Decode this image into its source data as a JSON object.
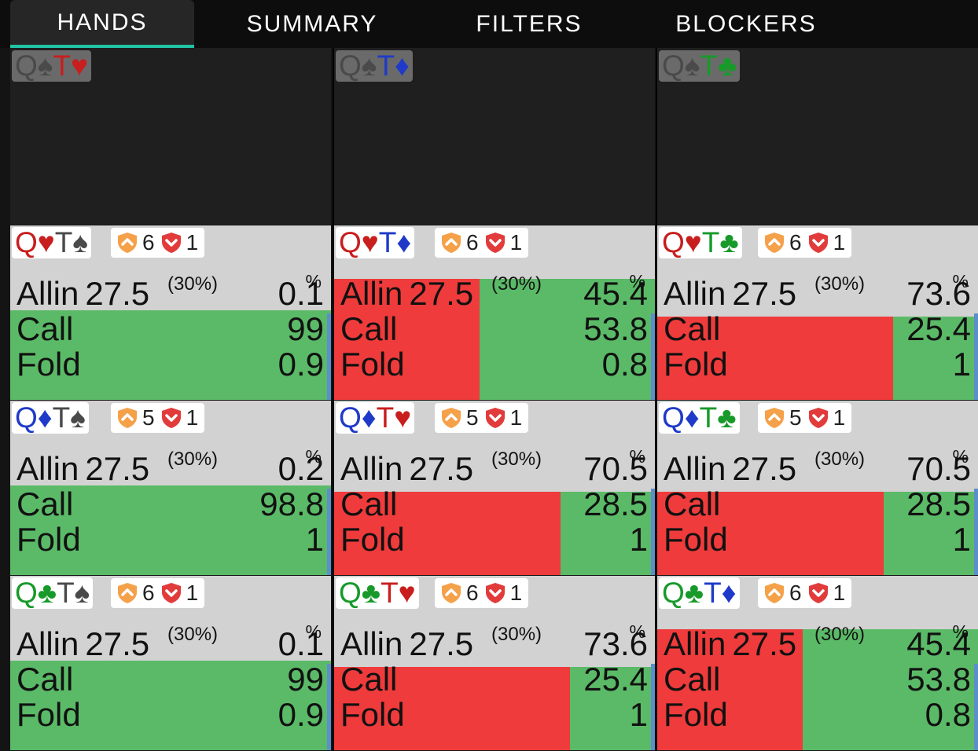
{
  "tabs": [
    {
      "label": "HANDS",
      "active": true
    },
    {
      "label": "SUMMARY",
      "active": false
    },
    {
      "label": "FILTERS",
      "active": false
    },
    {
      "label": "BLOCKERS",
      "active": false
    }
  ],
  "colors": {
    "accent": "#1fc3a5",
    "allin": "#ef3b3b",
    "call": "#5bba67",
    "panel": "#d2d2d2"
  },
  "icons": [
    "orange-shield-icon",
    "red-shield-icon",
    "spade-icon",
    "heart-icon",
    "diamond-icon",
    "club-icon"
  ],
  "top_row": [
    {
      "hand": [
        {
          "rank": "Q",
          "suit": "♠"
        },
        {
          "rank": "T",
          "suit": "♥"
        }
      ]
    },
    {
      "hand": [
        {
          "rank": "Q",
          "suit": "♠"
        },
        {
          "rank": "T",
          "suit": "♦"
        }
      ]
    },
    {
      "hand": [
        {
          "rank": "Q",
          "suit": "♠"
        },
        {
          "rank": "T",
          "suit": "♣"
        }
      ]
    }
  ],
  "action_labels": {
    "allin": "Allin",
    "call": "Call",
    "fold": "Fold",
    "allin_amount": "27.5",
    "allin_share": "(30%)",
    "pct_symbol": "%"
  },
  "hands": [
    {
      "hand": [
        {
          "rank": "Q",
          "suit": "♥"
        },
        {
          "rank": "T",
          "suit": "♠"
        }
      ],
      "stat_a": "6",
      "stat_b": "1",
      "allin": "0.1",
      "call": "99",
      "fold": "0.9"
    },
    {
      "hand": [
        {
          "rank": "Q",
          "suit": "♥"
        },
        {
          "rank": "T",
          "suit": "♦"
        }
      ],
      "stat_a": "6",
      "stat_b": "1",
      "allin": "45.4",
      "call": "53.8",
      "fold": "0.8"
    },
    {
      "hand": [
        {
          "rank": "Q",
          "suit": "♥"
        },
        {
          "rank": "T",
          "suit": "♣"
        }
      ],
      "stat_a": "6",
      "stat_b": "1",
      "allin": "73.6",
      "call": "25.4",
      "fold": "1"
    },
    {
      "hand": [
        {
          "rank": "Q",
          "suit": "♦"
        },
        {
          "rank": "T",
          "suit": "♠"
        }
      ],
      "stat_a": "5",
      "stat_b": "1",
      "allin": "0.2",
      "call": "98.8",
      "fold": "1"
    },
    {
      "hand": [
        {
          "rank": "Q",
          "suit": "♦"
        },
        {
          "rank": "T",
          "suit": "♥"
        }
      ],
      "stat_a": "5",
      "stat_b": "1",
      "allin": "70.5",
      "call": "28.5",
      "fold": "1"
    },
    {
      "hand": [
        {
          "rank": "Q",
          "suit": "♦"
        },
        {
          "rank": "T",
          "suit": "♣"
        }
      ],
      "stat_a": "5",
      "stat_b": "1",
      "allin": "70.5",
      "call": "28.5",
      "fold": "1"
    },
    {
      "hand": [
        {
          "rank": "Q",
          "suit": "♣"
        },
        {
          "rank": "T",
          "suit": "♠"
        }
      ],
      "stat_a": "6",
      "stat_b": "1",
      "allin": "0.1",
      "call": "99",
      "fold": "0.9"
    },
    {
      "hand": [
        {
          "rank": "Q",
          "suit": "♣"
        },
        {
          "rank": "T",
          "suit": "♥"
        }
      ],
      "stat_a": "6",
      "stat_b": "1",
      "allin": "73.6",
      "call": "25.4",
      "fold": "1"
    },
    {
      "hand": [
        {
          "rank": "Q",
          "suit": "♣"
        },
        {
          "rank": "T",
          "suit": "♦"
        }
      ],
      "stat_a": "6",
      "stat_b": "1",
      "allin": "45.4",
      "call": "53.8",
      "fold": "0.8"
    }
  ]
}
